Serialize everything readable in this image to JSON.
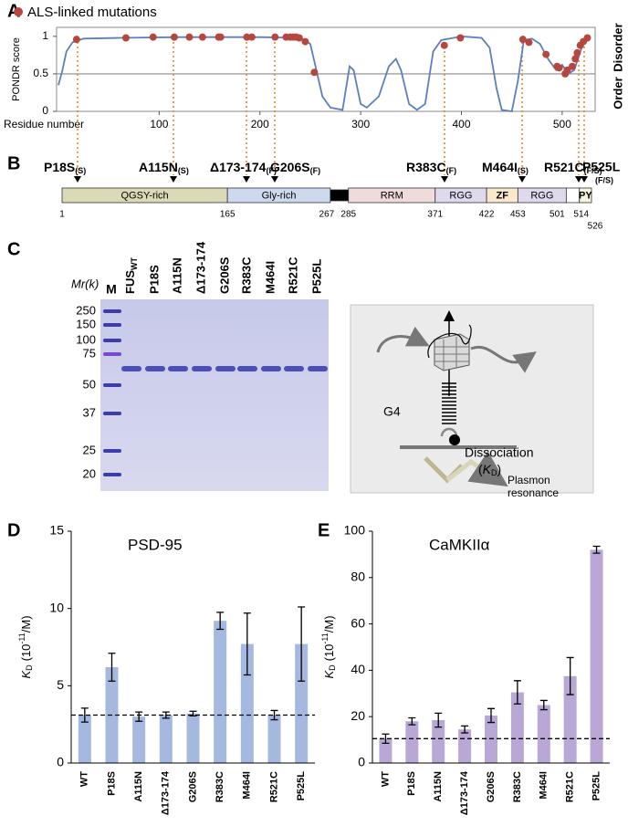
{
  "panel_labels": [
    "A",
    "B",
    "C",
    "D",
    "E"
  ],
  "chart_data": [
    {
      "type": "line",
      "y_label": "PONDR score",
      "x_label": "Residue number",
      "region_labels": [
        "Order",
        "Disorder"
      ],
      "threshold": 0.5,
      "xlim": [
        0,
        530
      ],
      "xticks": [
        100,
        200,
        300,
        400,
        500
      ],
      "ylim": [
        0,
        1.12
      ],
      "yticks": [
        0,
        0.5,
        1
      ],
      "legend": "top-left",
      "series": [
        {
          "color": "#5b7fbf",
          "x": [
            0,
            4,
            8,
            14,
            25,
            60,
            120,
            200,
            240,
            250,
            256,
            262,
            270,
            282,
            289,
            293,
            300,
            306,
            318,
            328,
            335,
            340,
            348,
            356,
            364,
            372,
            380,
            400,
            420,
            428,
            435,
            440,
            450,
            456,
            462,
            470,
            478,
            486,
            494,
            500,
            506,
            512,
            518,
            522,
            526
          ],
          "values": [
            0.35,
            0.55,
            0.8,
            0.92,
            0.97,
            0.98,
            0.99,
            0.99,
            0.98,
            0.9,
            0.55,
            0.2,
            0.05,
            0.02,
            0.6,
            0.55,
            0.1,
            0.05,
            0.2,
            0.6,
            0.7,
            0.55,
            0.1,
            0.02,
            0.1,
            0.8,
            0.95,
            1.0,
            0.98,
            0.85,
            0.3,
            0.02,
            0.0,
            0.4,
            0.95,
            0.97,
            0.9,
            0.7,
            0.55,
            0.62,
            0.5,
            0.55,
            0.8,
            0.95,
            1.0
          ]
        },
        {
          "name": "ALS-linked mutations",
          "type": "scatter",
          "color": "#b5473f",
          "x": [
            18,
            67,
            94,
            115,
            130,
            143,
            159,
            161,
            187,
            192,
            215,
            226,
            230,
            233,
            236,
            239,
            245,
            254,
            383,
            399,
            461,
            467,
            484,
            495,
            497,
            503,
            505,
            510,
            513,
            515,
            518,
            521,
            525
          ],
          "values": [
            0.96,
            0.98,
            0.99,
            0.99,
            0.99,
            0.99,
            0.99,
            0.99,
            0.99,
            0.99,
            0.99,
            0.99,
            0.99,
            0.99,
            0.99,
            0.98,
            0.93,
            0.52,
            0.88,
            0.98,
            0.96,
            0.92,
            0.76,
            0.6,
            0.58,
            0.5,
            0.55,
            0.6,
            0.7,
            0.78,
            0.88,
            0.93,
            0.98
          ]
        }
      ]
    },
    {
      "type": "bar",
      "annotation": "PSD-95",
      "y_label": {
        "k": "K",
        "sub": "D",
        "open": "(10",
        "sup": "-11",
        "close": "/M)"
      },
      "categories": [
        "WT",
        "P18S",
        "A115N",
        "Δ173-174",
        "G206S",
        "R383C",
        "M464I",
        "R521C",
        "P525L"
      ],
      "values": [
        3.1,
        6.2,
        3.0,
        3.1,
        3.2,
        9.2,
        7.7,
        3.1,
        7.7
      ],
      "errors": [
        0.45,
        0.9,
        0.3,
        0.2,
        0.15,
        0.55,
        2.0,
        0.3,
        2.4
      ],
      "color": "#a5b8df",
      "ylim": [
        0,
        15
      ],
      "yticks": [
        0,
        5,
        10,
        15
      ]
    },
    {
      "type": "bar",
      "annotation": "CaMKIIα",
      "y_label": {
        "k": "K",
        "sub": "D",
        "open": "(10",
        "sup": "-11",
        "close": "/M)"
      },
      "categories": [
        "WT",
        "P18S",
        "A115N",
        "Δ173-174",
        "G206S",
        "R383C",
        "M464I",
        "R521C",
        "P525L"
      ],
      "values": [
        10.5,
        18,
        18.5,
        14.5,
        20.5,
        30.5,
        25,
        37.5,
        92
      ],
      "errors": [
        2,
        1.5,
        3,
        1.5,
        3,
        5,
        2,
        8,
        1.5
      ],
      "color": "#b9a8d6",
      "ylim": [
        0,
        100
      ],
      "yticks": [
        0,
        20,
        40,
        60,
        80,
        100
      ]
    }
  ],
  "domain_map": {
    "mutations": [
      {
        "label": "P18S",
        "note": "(S)"
      },
      {
        "label": "A115N",
        "note": "(S)"
      },
      {
        "label": "Δ173-174",
        "note": "(F)"
      },
      {
        "label": "G206S",
        "note": "(F)"
      },
      {
        "label": "R383C",
        "note": "(F)"
      },
      {
        "label": "M464I",
        "note": "(S)"
      },
      {
        "label": "R521C",
        "note": "(F/S)"
      },
      {
        "label": "P525L",
        "note": "(F/S)"
      }
    ],
    "boundaries": [
      1,
      165,
      267,
      285,
      371,
      422,
      453,
      501,
      514,
      526
    ],
    "domains": [
      {
        "label": "QGSY-rich",
        "color": "#dcd9b6"
      },
      {
        "label": "Gly-rich",
        "color": "#cdd9ef"
      },
      {
        "label": null,
        "color": "#000000"
      },
      {
        "label": "RRM",
        "color": "#f1dada"
      },
      {
        "label": "RGG",
        "color": "#dfd9ee"
      },
      {
        "label": "ZF",
        "color": "#fbe7c9"
      },
      {
        "label": "RGG",
        "color": "#dfd9ee"
      },
      {
        "label": null,
        "color": "#ffffff"
      },
      {
        "label": "PY",
        "color": "#f5f5dc"
      }
    ]
  },
  "gel": {
    "mr_label": "Mr(k)",
    "marker_lane": "M",
    "wt_lane": {
      "label": "FUS",
      "sub": "WT"
    },
    "lanes": [
      "P18S",
      "A115N",
      "Δ173-174",
      "G206S",
      "R383C",
      "M464I",
      "R521C",
      "P525L"
    ],
    "marker_sizes": [
      250,
      150,
      100,
      75,
      50,
      37,
      25,
      20
    ]
  },
  "schematic": {
    "g4": "G4",
    "dissociation": "Dissociation",
    "kd": {
      "open": "(",
      "k": "K",
      "sub": "D",
      "close": ")"
    },
    "plasmon": [
      "Plasmon",
      "resonance"
    ]
  }
}
